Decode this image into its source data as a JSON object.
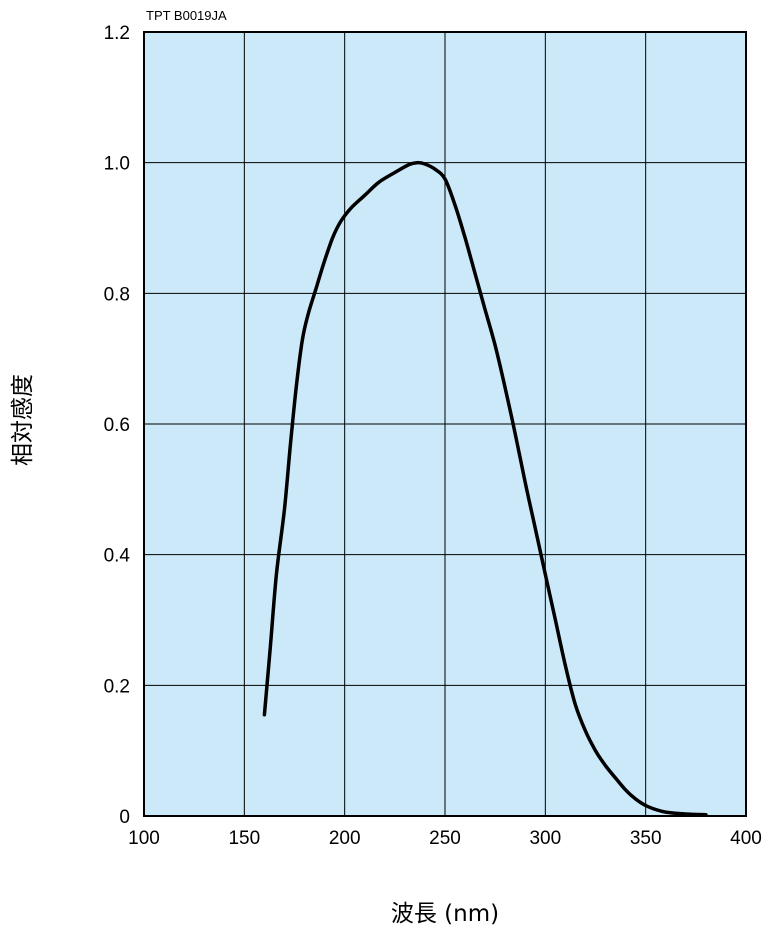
{
  "chart_data": {
    "type": "line",
    "code_label": "TPT B0019JA",
    "xlabel": "波長 (nm)",
    "ylabel": "相対感度",
    "xlim": [
      100,
      400
    ],
    "ylim": [
      0,
      1.2
    ],
    "grid": true,
    "plot_background": "#cbe9f8",
    "line_color": "#000000",
    "x_ticks": [
      100,
      150,
      200,
      250,
      300,
      350,
      400
    ],
    "x_tick_labels": [
      "100",
      "150",
      "200",
      "250",
      "300",
      "350",
      "400"
    ],
    "y_ticks": [
      0,
      0.2,
      0.4,
      0.6,
      0.8,
      1.0,
      1.2
    ],
    "y_tick_labels": [
      "0",
      "0.2",
      "0.4",
      "0.6",
      "0.8",
      "1.0",
      "1.2"
    ],
    "series": [
      {
        "x": [
          160,
          163,
          166,
          170,
          173,
          176,
          179,
          182,
          186,
          190,
          194,
          198,
          203,
          210,
          217,
          225,
          232,
          236,
          240,
          245,
          250,
          255,
          260,
          265,
          270,
          275,
          280,
          285,
          290,
          295,
          300,
          305,
          310,
          315,
          320,
          325,
          330,
          335,
          340,
          345,
          350,
          355,
          360,
          370,
          380
        ],
        "y": [
          0.155,
          0.26,
          0.37,
          0.47,
          0.57,
          0.66,
          0.73,
          0.77,
          0.81,
          0.85,
          0.885,
          0.91,
          0.93,
          0.95,
          0.97,
          0.985,
          0.997,
          1.0,
          0.998,
          0.99,
          0.975,
          0.935,
          0.885,
          0.83,
          0.775,
          0.72,
          0.655,
          0.585,
          0.51,
          0.44,
          0.37,
          0.3,
          0.23,
          0.17,
          0.13,
          0.1,
          0.077,
          0.058,
          0.04,
          0.026,
          0.016,
          0.01,
          0.006,
          0.003,
          0.002
        ]
      }
    ]
  }
}
